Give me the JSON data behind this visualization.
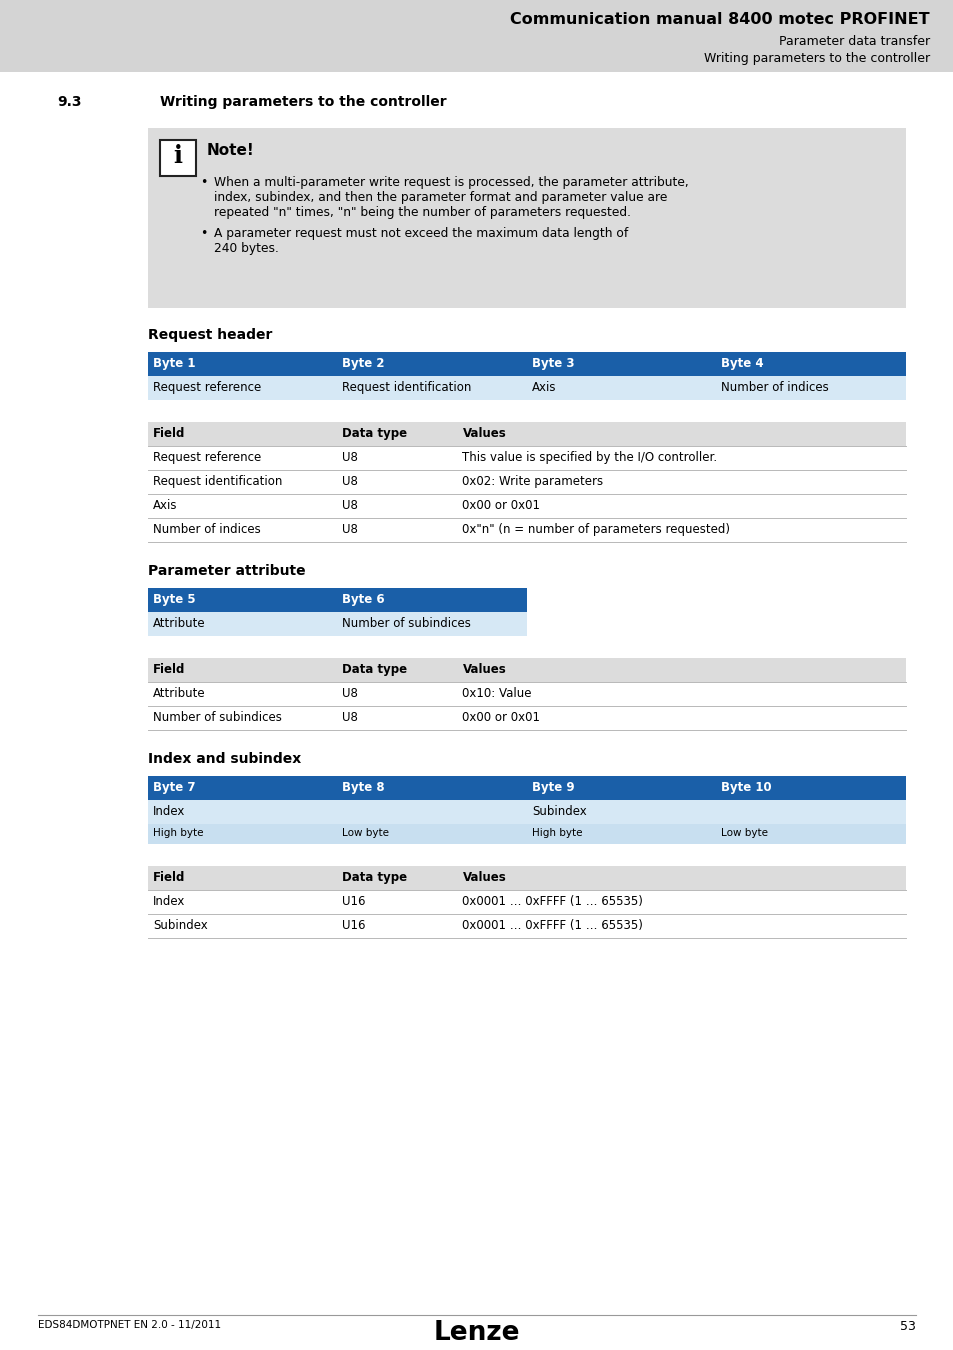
{
  "page_bg": "#ffffff",
  "header_bg": "#d4d4d4",
  "blue_header": "#1a5fa8",
  "light_blue_row": "#d6e8f5",
  "gray_row": "#dcdcdc",
  "white_row": "#ffffff",
  "note_bg": "#dcdcdc",
  "line_color": "#b0b0b0",
  "title_text": "Communication manual 8400 motec PROFINET",
  "subtitle1": "Parameter data transfer",
  "subtitle2": "Writing parameters to the controller",
  "section_num": "9.3",
  "section_title": "Writing parameters to the controller",
  "note_title": "Note!",
  "bullet1_lines": [
    "When a multi-parameter write request is processed, the parameter attribute,",
    "index, subindex, and then the parameter format and parameter value are",
    "repeated \"n\" times, \"n\" being the number of parameters requested."
  ],
  "bullet2_lines": [
    "A parameter request must not exceed the maximum data length of",
    "240 bytes."
  ],
  "req_header_title": "Request header",
  "req_header_bytes": [
    "Byte 1",
    "Byte 2",
    "Byte 3",
    "Byte 4"
  ],
  "req_header_values": [
    "Request reference",
    "Request identification",
    "Axis",
    "Number of indices"
  ],
  "req_header_fields": [
    "Field",
    "Data type",
    "Values"
  ],
  "req_header_rows": [
    [
      "Request reference",
      "U8",
      "This value is specified by the I/O controller."
    ],
    [
      "Request identification",
      "U8",
      "0x02: Write parameters"
    ],
    [
      "Axis",
      "U8",
      "0x00 or 0x01"
    ],
    [
      "Number of indices",
      "U8",
      "0x\"n\" (n = number of parameters requested)"
    ]
  ],
  "param_attr_title": "Parameter attribute",
  "param_attr_bytes": [
    "Byte 5",
    "Byte 6"
  ],
  "param_attr_values": [
    "Attribute",
    "Number of subindices"
  ],
  "param_attr_fields": [
    "Field",
    "Data type",
    "Values"
  ],
  "param_attr_rows": [
    [
      "Attribute",
      "U8",
      "0x10: Value"
    ],
    [
      "Number of subindices",
      "U8",
      "0x00 or 0x01"
    ]
  ],
  "index_title": "Index and subindex",
  "index_bytes": [
    "Byte 7",
    "Byte 8",
    "Byte 9",
    "Byte 10"
  ],
  "index_row1": [
    "Index",
    "",
    "Subindex",
    ""
  ],
  "index_row2": [
    "High byte",
    "Low byte",
    "High byte",
    "Low byte"
  ],
  "index_fields": [
    "Field",
    "Data type",
    "Values"
  ],
  "index_rows": [
    [
      "Index",
      "U16",
      "0x0001 … 0xFFFF (1 … 65535)"
    ],
    [
      "Subindex",
      "U16",
      "0x0001 … 0xFFFF (1 … 65535)"
    ]
  ],
  "footer_left": "EDS84DMOTPNET EN 2.0 - 11/2011",
  "footer_page": "53"
}
